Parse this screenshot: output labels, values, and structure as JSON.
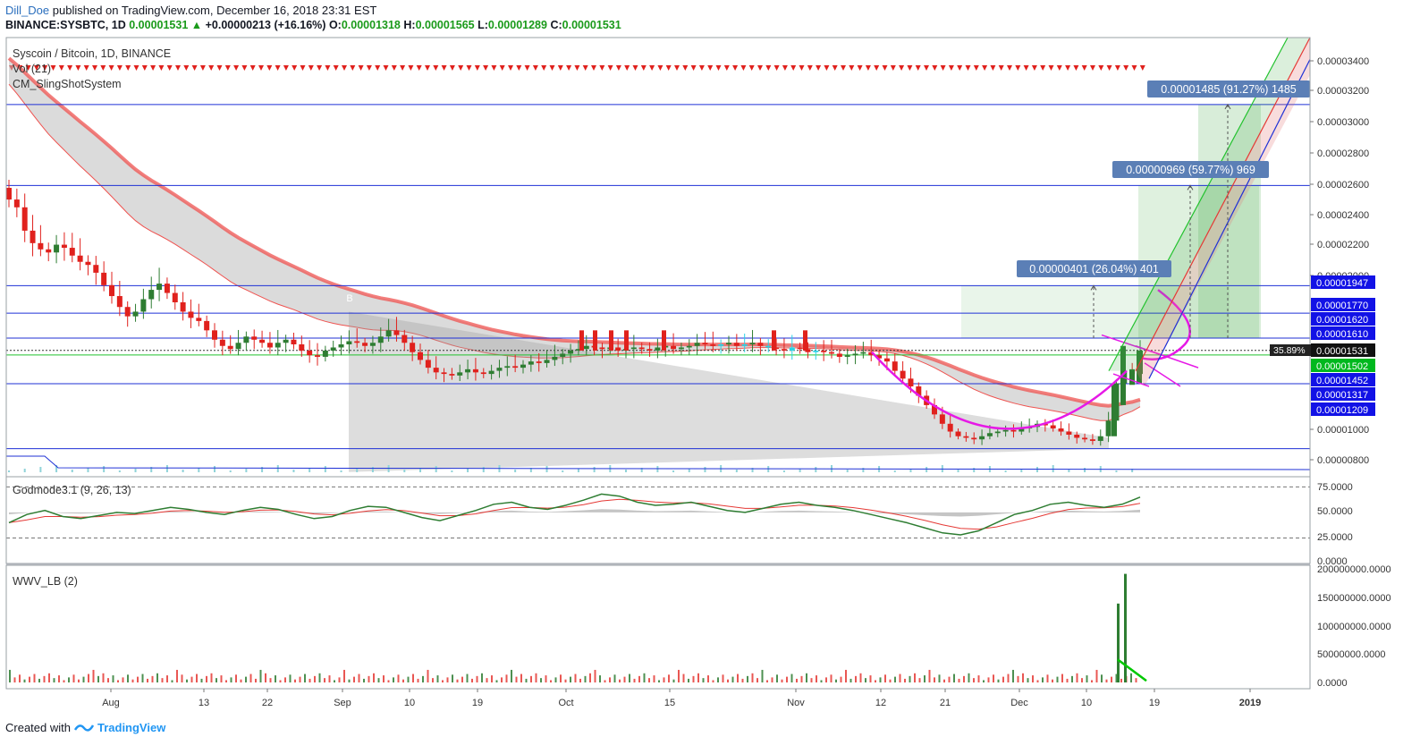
{
  "header": {
    "author": "Dill_Doe",
    "published_text": "published on TradingView.com, December 16, 2018 23:31 EST",
    "symbol": "BINANCE:SYSBTC, 1D",
    "last": "0.00001531",
    "change_arrow": "▲",
    "change": "+0.00000213 (+16.16%)",
    "o_label": "O:",
    "o": "0.00001318",
    "h_label": "H:",
    "h": "0.00001565",
    "l_label": "L:",
    "l": "0.00001289",
    "c_label": "C:",
    "c": "0.00001531"
  },
  "legends": {
    "main": "Syscoin / Bitcoin, 1D, BINANCE",
    "vol": "Vol (21)",
    "slingshot": "CM_SlingShotSystem",
    "godmode": "Godmode3.1 (9, 26, 13)",
    "wwv": "WWV_LB (2)"
  },
  "footer": {
    "created_with": "Created with",
    "brand": "TradingView"
  },
  "colors": {
    "up": "#2e7d32",
    "down": "#e0211d",
    "level": "#1f31d6",
    "green_level": "#22c22e",
    "ema": "#ef5350",
    "magenta": "#e619e6"
  },
  "chart_data": [
    {
      "type": "candlestick",
      "title": "Syscoin / Bitcoin, 1D, BINANCE",
      "x_ticks": [
        "Aug",
        "13",
        "22",
        "Sep",
        "10",
        "19",
        "Oct",
        "15",
        "Nov",
        "12",
        "21",
        "Dec",
        "10",
        "19",
        "2019"
      ],
      "y_ticks": [
        "0.00003400",
        "0.00003200",
        "0.00003000",
        "0.00002800",
        "0.00002600",
        "0.00002400",
        "0.00002200",
        "0.00002000",
        "0.00001000",
        "0.00000800"
      ],
      "ylim": [
        7.2e-06,
        3.54e-05
      ],
      "levels": [
        {
          "value": 1.947e-05,
          "label": "0.00001947"
        },
        {
          "value": 1.77e-05,
          "label": "0.00001770"
        },
        {
          "value": 1.62e-05,
          "label": "0.00001620"
        },
        {
          "value": 1.61e-05,
          "label": "0.00001610"
        },
        {
          "value": 1.452e-05,
          "label": "0.00001452"
        },
        {
          "value": 1.317e-05,
          "label": "0.00001317"
        },
        {
          "value": 1.209e-05,
          "label": "0.00001209"
        }
      ],
      "last_price": {
        "value": 1.531e-05,
        "label": "0.00001531",
        "pct": "35.89%"
      },
      "green_price": {
        "value": 1.502e-05,
        "label": "0.00001502"
      },
      "annotations": [
        "0.00001485 (91.27%) 1485",
        "0.00000969 (59.77%) 969",
        "0.00000401 (26.04%) 401"
      ],
      "marker_text": "B",
      "close_trend": [
        2.5e-05,
        2.45e-05,
        2.3e-05,
        2.22e-05,
        2.18e-05,
        2.16e-05,
        2.21e-05,
        2.19e-05,
        2.14e-05,
        2.1e-05,
        2.08e-05,
        2.03e-05,
        1.95e-05,
        1.88e-05,
        1.81e-05,
        1.75e-05,
        1.78e-05,
        1.86e-05,
        1.92e-05,
        1.96e-05,
        1.9e-05,
        1.84e-05,
        1.78e-05,
        1.74e-05,
        1.72e-05,
        1.66e-05,
        1.6e-05,
        1.56e-05,
        1.54e-05,
        1.58e-05,
        1.62e-05,
        1.6e-05,
        1.58e-05,
        1.55e-05,
        1.58e-05,
        1.6e-05,
        1.57e-05,
        1.53e-05,
        1.5e-05,
        1.49e-05,
        1.53e-05,
        1.55e-05,
        1.57e-05,
        1.59e-05,
        1.58e-05,
        1.56e-05,
        1.58e-05,
        1.62e-05,
        1.66e-05,
        1.63e-05,
        1.58e-05,
        1.52e-05,
        1.47e-05,
        1.42e-05,
        1.39e-05,
        1.38e-05,
        1.37e-05,
        1.39e-05,
        1.41e-05,
        1.39e-05,
        1.38e-05,
        1.4e-05,
        1.42e-05,
        1.43e-05,
        1.42e-05,
        1.44e-05,
        1.46e-05,
        1.45e-05,
        1.47e-05,
        1.49e-05,
        1.51e-05,
        1.53e-05,
        1.54e-05,
        1.56e-05,
        1.55e-05,
        1.54e-05,
        1.55e-05,
        1.53e-05,
        1.54e-05,
        1.55e-05,
        1.54e-05,
        1.53e-05,
        1.55e-05,
        1.56e-05,
        1.54e-05,
        1.55e-05,
        1.56e-05,
        1.58e-05,
        1.57e-05,
        1.56e-05,
        1.57e-05,
        1.58e-05,
        1.56e-05,
        1.57e-05,
        1.58e-05,
        1.56e-05,
        1.55e-05,
        1.54e-05,
        1.53e-05,
        1.55e-05,
        1.54e-05,
        1.52e-05,
        1.53e-05,
        1.52e-05,
        1.51e-05,
        1.49e-05,
        1.5e-05,
        1.51e-05,
        1.52e-05,
        1.5e-05,
        1.48e-05,
        1.46e-05,
        1.4e-05,
        1.35e-05,
        1.3e-05,
        1.24e-05,
        1.18e-05,
        1.12e-05,
        1.06e-05,
        1.01e-05,
        9.8e-06,
        9.7e-06,
        9.6e-06,
        9.8e-06,
        1e-05,
        1.01e-05,
        1.02e-05,
        1.01e-05,
        1.03e-05,
        1.04e-05,
        1.06e-05,
        1.05e-05,
        1.03e-05,
        1.01e-05,
        9.9e-06,
        9.7e-06,
        9.6e-06,
        9.5e-06,
        9.8e-06,
        1.08e-05,
        1.32e-05,
        1.4e-05,
        1.38e-05,
        1.53e-05
      ]
    },
    {
      "type": "line",
      "title": "Godmode3.1 (9, 26, 13)",
      "y_ticks": [
        "75.0000",
        "50.0000",
        "25.0000",
        "0.0000"
      ],
      "ylim": [
        0,
        85
      ],
      "series": [
        {
          "values": [
            40,
            48,
            52,
            46,
            44,
            47,
            50,
            49,
            52,
            55,
            53,
            50,
            48,
            52,
            55,
            53,
            48,
            44,
            46,
            52,
            56,
            55,
            50,
            45,
            42,
            47,
            52,
            58,
            60,
            55,
            53,
            57,
            62,
            68,
            66,
            60,
            57,
            58,
            60,
            56,
            52,
            50,
            54,
            58,
            60,
            57,
            55,
            52,
            48,
            44,
            40,
            35,
            30,
            28,
            32,
            40,
            48,
            52,
            58,
            60,
            57,
            55,
            58,
            65
          ]
        }
      ]
    },
    {
      "type": "bar",
      "title": "WWV_LB (2)",
      "y_ticks": [
        "200000000.0000",
        "150000000.0000",
        "100000000.0000",
        "50000000.0000",
        "0.0000"
      ],
      "ylim": [
        0,
        205000000
      ],
      "values_note_spikes": [
        138000000,
        190000000
      ]
    }
  ]
}
